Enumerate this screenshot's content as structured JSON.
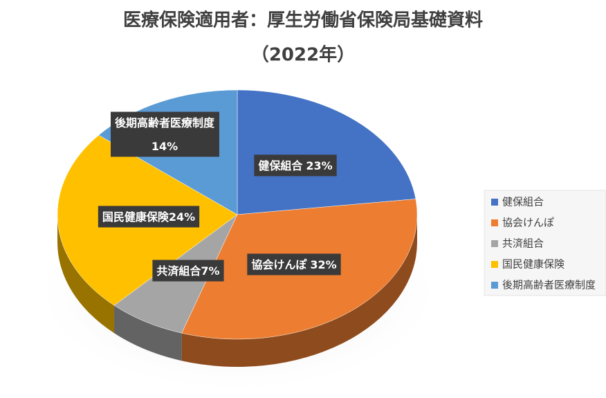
{
  "chart_data": {
    "type": "pie3d",
    "title": "医療保険適用者：厚生労働省保険局基礎資料",
    "subtitle": "（2022年）",
    "categories": [
      "健保組合",
      "協会けんぽ",
      "共済組合",
      "国民健康保険",
      "後期高齢者医療制度"
    ],
    "values": [
      23,
      32,
      7,
      24,
      14
    ],
    "value_labels": [
      "23%",
      "32%",
      "7%",
      "24%",
      "14%"
    ],
    "colors": [
      "#4472c4",
      "#ed7d31",
      "#a5a5a5",
      "#ffc000",
      "#5b9bd5"
    ],
    "legend": "right"
  }
}
